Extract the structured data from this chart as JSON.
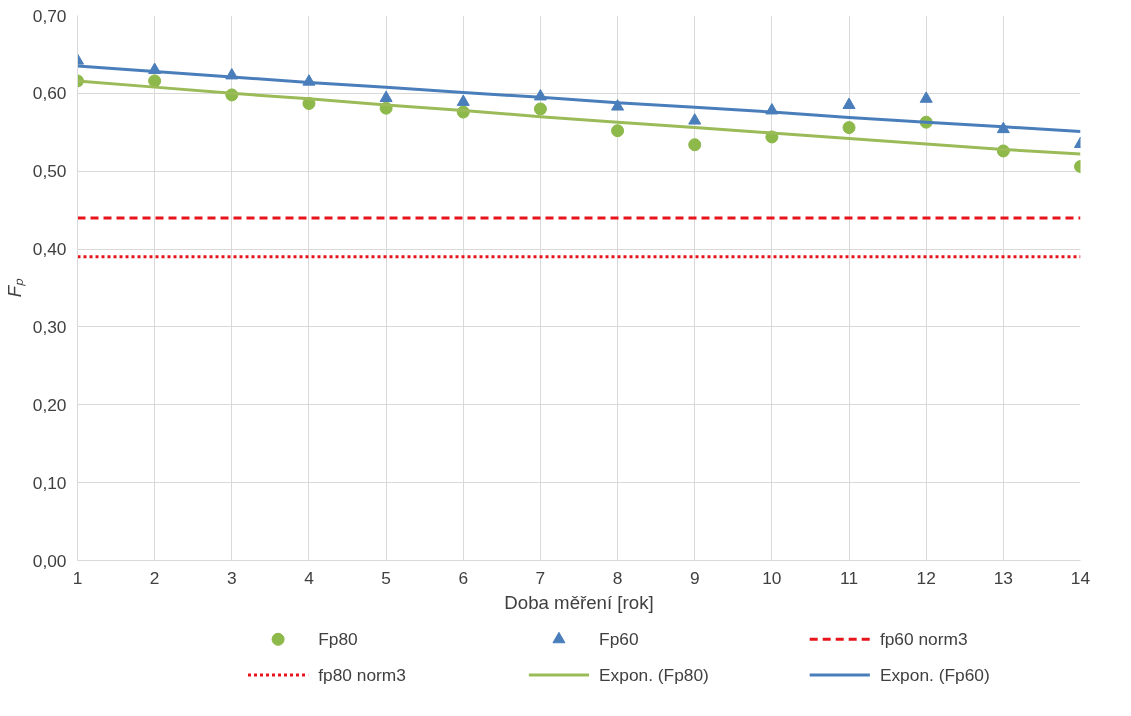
{
  "chart_data": {
    "type": "scatter",
    "xlabel": "Doba měření [rok]",
    "ylabel": "Fₚ",
    "x": [
      1,
      2,
      3,
      4,
      5,
      6,
      7,
      8,
      9,
      10,
      11,
      12,
      13,
      14
    ],
    "series": [
      {
        "name": "Fp80",
        "marker": "circle",
        "color": "#8db84a",
        "values": [
          0.616,
          0.616,
          0.598,
          0.587,
          0.581,
          0.576,
          0.58,
          0.552,
          0.534,
          0.544,
          0.556,
          0.563,
          0.526,
          0.506
        ]
      },
      {
        "name": "Fp60",
        "marker": "triangle",
        "color": "#4a7ebb",
        "values": [
          0.642,
          0.63,
          0.623,
          0.615,
          0.594,
          0.589,
          0.596,
          0.583,
          0.565,
          0.578,
          0.585,
          0.593,
          0.554,
          0.535
        ]
      },
      {
        "name": "Expon. (Fp80)",
        "type": "line",
        "marker": "none",
        "line_style": "solid",
        "color": "#9bbb59",
        "values": [
          0.616,
          0.608,
          0.6,
          0.593,
          0.585,
          0.578,
          0.57,
          0.563,
          0.556,
          0.549,
          0.542,
          0.535,
          0.528,
          0.522
        ]
      },
      {
        "name": "Expon. (Fp60)",
        "type": "line",
        "marker": "none",
        "line_style": "solid",
        "color": "#4a7ebb",
        "values": [
          0.635,
          0.628,
          0.621,
          0.614,
          0.608,
          0.601,
          0.595,
          0.588,
          0.582,
          0.576,
          0.569,
          0.563,
          0.557,
          0.551
        ]
      }
    ],
    "ref_lines": [
      {
        "axis": "y",
        "value": 0.44,
        "label": "fp60 norm3",
        "color": "#e8141c",
        "line_style": "dashed"
      },
      {
        "axis": "y",
        "value": 0.39,
        "label": "fp80 norm3",
        "color": "#e8141c",
        "line_style": "dotted"
      }
    ],
    "xlim": [
      1,
      14
    ],
    "xticks": [
      1,
      2,
      3,
      4,
      5,
      6,
      7,
      8,
      9,
      10,
      11,
      12,
      13,
      14
    ],
    "ylim": [
      0,
      0.7
    ],
    "yticks": [
      {
        "value": 0,
        "label": "0,00"
      },
      {
        "value": 0.1,
        "label": "0,10"
      },
      {
        "value": 0.2,
        "label": "0,20"
      },
      {
        "value": 0.3,
        "label": "0,30"
      },
      {
        "value": 0.4,
        "label": "0,40"
      },
      {
        "value": 0.5,
        "label": "0,50"
      },
      {
        "value": 0.6,
        "label": "0,60"
      },
      {
        "value": 0.7,
        "label": "0,70"
      }
    ],
    "grid": true,
    "legend": "bottom"
  }
}
